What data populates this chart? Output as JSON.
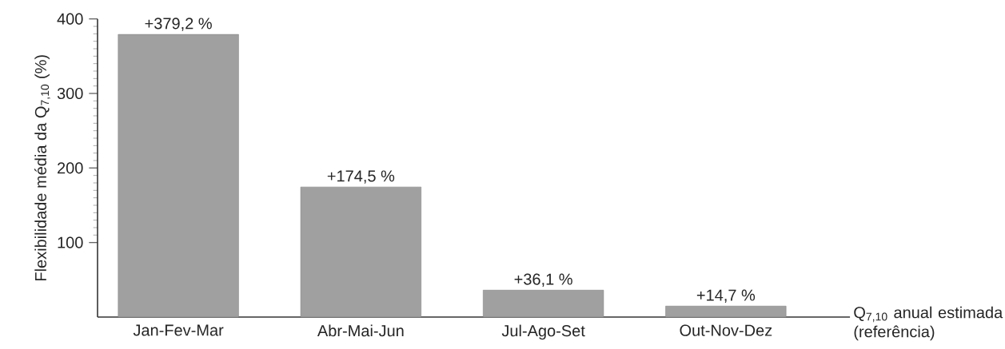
{
  "chart_data": {
    "type": "bar",
    "categories": [
      "Jan-Fev-Mar",
      "Abr-Mai-Jun",
      "Jul-Ago-Set",
      "Out-Nov-Dez"
    ],
    "values": [
      379.2,
      174.5,
      36.1,
      14.7
    ],
    "value_labels": [
      "+379,2 %",
      "+174,5 %",
      "+36,1 %",
      "+14,7 %"
    ],
    "color": "#a0a0a0",
    "ylabel": "Flexibilidade média da Q$_{7,10}$ (%)",
    "xlabel": "Q$_{7,10}$ anual estimada (referência)",
    "ylim": [
      0,
      400
    ],
    "yticks": [
      100,
      200,
      300,
      400
    ],
    "grid": false
  }
}
